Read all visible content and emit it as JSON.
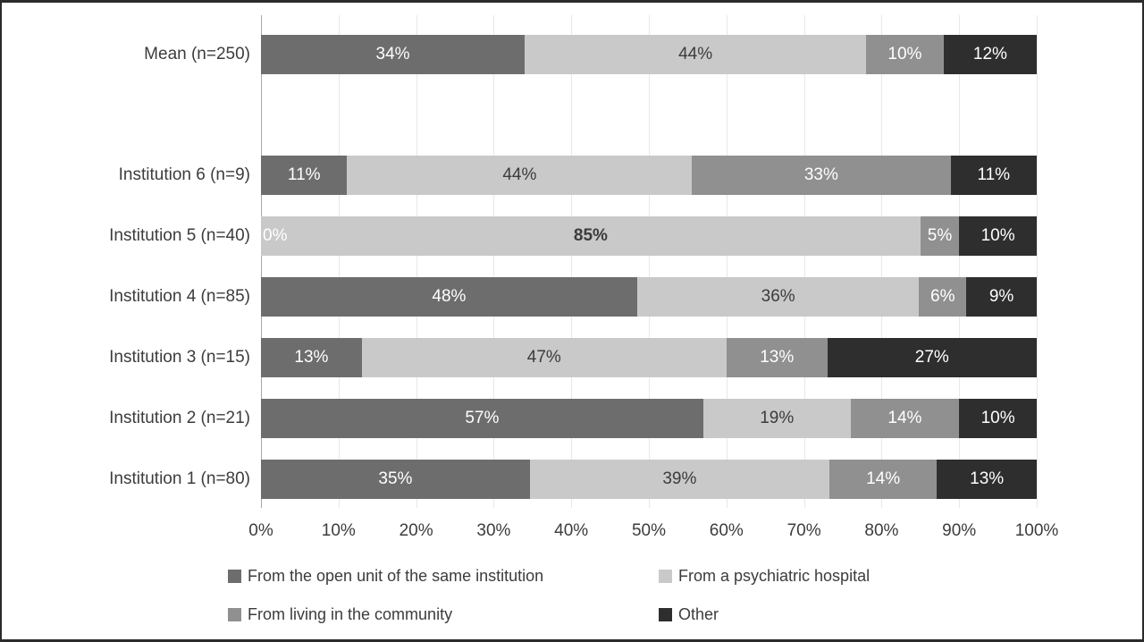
{
  "chart_data": {
    "type": "bar",
    "orientation": "horizontal",
    "stacked": true,
    "unit": "%",
    "xlim": [
      0,
      100
    ],
    "grid": true,
    "legend_position": "bottom",
    "x_ticks": [
      "0%",
      "10%",
      "20%",
      "30%",
      "40%",
      "50%",
      "60%",
      "70%",
      "80%",
      "90%",
      "100%"
    ],
    "series": [
      {
        "name": "From the open unit of the same institution",
        "color": "#6d6d6d",
        "label_color": "#ffffff"
      },
      {
        "name": "From a psychiatric hospital",
        "color": "#c9c9c9",
        "label_color": "#3c3c3c"
      },
      {
        "name": "From living in the community",
        "color": "#909090",
        "label_color": "#ffffff"
      },
      {
        "name": "Other",
        "color": "#2e2e2e",
        "label_color": "#ffffff"
      }
    ],
    "mean_row": {
      "label": "Mean (n=250)",
      "values": [
        34,
        44,
        10,
        12
      ],
      "labels": [
        "34%",
        "44%",
        "10%",
        "12%"
      ]
    },
    "institution_rows": [
      {
        "label": "Institution 6 (n=9)",
        "values": [
          11,
          44,
          33,
          11
        ],
        "labels": [
          "11%",
          "44%",
          "33%",
          "11%"
        ]
      },
      {
        "label": "Institution 5 (n=40)",
        "values": [
          0,
          85,
          5,
          10
        ],
        "labels": [
          "0%",
          "85%",
          "5%",
          "10%"
        ],
        "bold_index": 1
      },
      {
        "label": "Institution 4 (n=85)",
        "values": [
          48,
          36,
          6,
          9
        ],
        "labels": [
          "48%",
          "36%",
          "6%",
          "9%"
        ]
      },
      {
        "label": "Institution 3 (n=15)",
        "values": [
          13,
          47,
          13,
          27
        ],
        "labels": [
          "13%",
          "47%",
          "13%",
          "27%"
        ]
      },
      {
        "label": "Institution 2 (n=21)",
        "values": [
          57,
          19,
          14,
          10
        ],
        "labels": [
          "57%",
          "19%",
          "14%",
          "10%"
        ]
      },
      {
        "label": "Institution 1 (n=80)",
        "values": [
          35,
          39,
          14,
          13
        ],
        "labels": [
          "35%",
          "39%",
          "14%",
          "13%"
        ]
      }
    ]
  },
  "colors": {
    "background": "#ffffff",
    "frame_border": "#2b2b2b",
    "gridline": "#e8e8e8",
    "axis_line": "#a8a8a8",
    "text": "#3c3c3c"
  }
}
